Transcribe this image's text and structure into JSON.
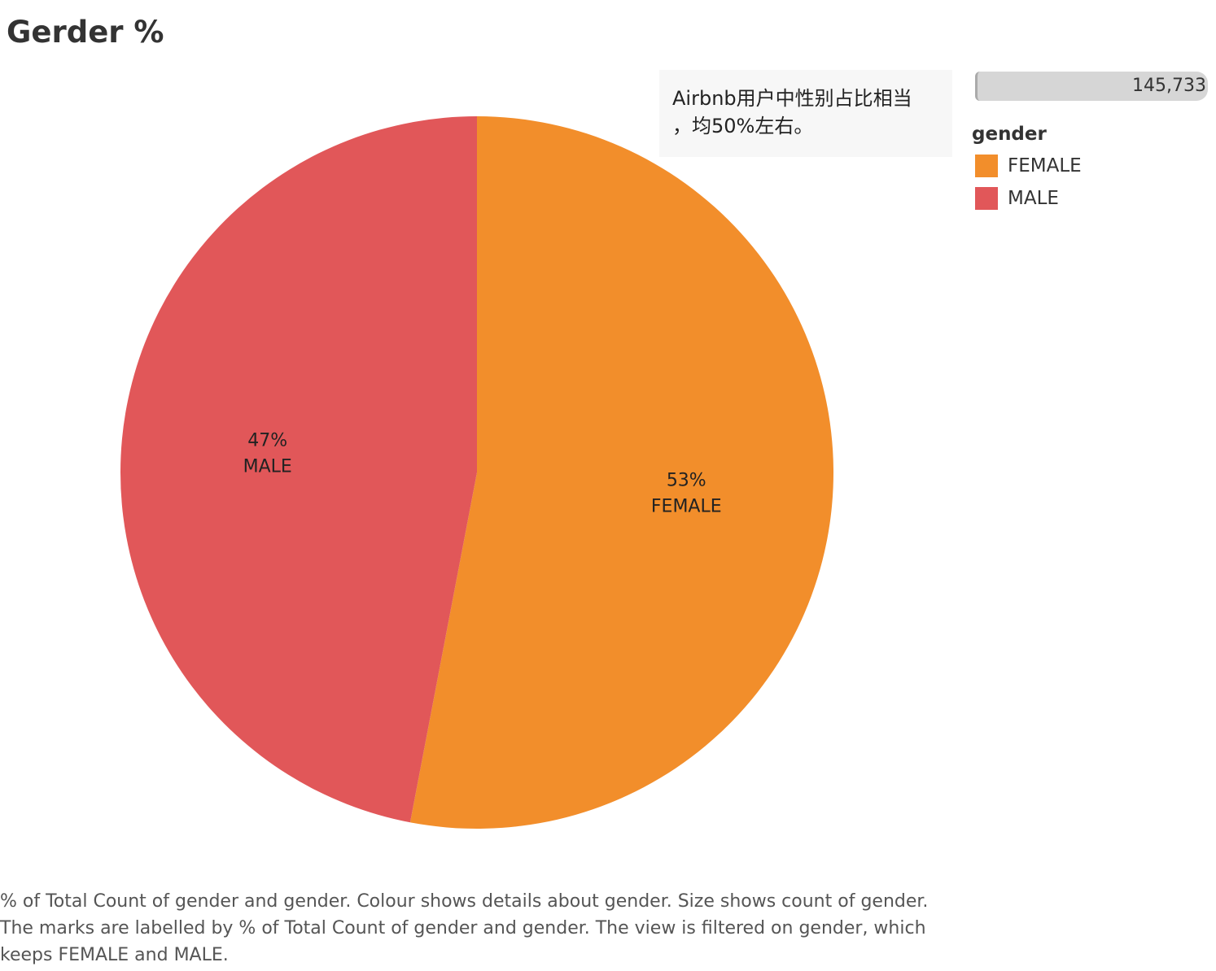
{
  "title": "Gerder %",
  "annotation": {
    "line1": "Airbnb用户中性别占比相当",
    "line2": "，均50%左右。"
  },
  "size_legend": {
    "max_value": "145,733"
  },
  "legend": {
    "title": "gender",
    "items": [
      {
        "label": "FEMALE",
        "color": "#f28e2b"
      },
      {
        "label": "MALE",
        "color": "#e15759"
      }
    ]
  },
  "chart_data": {
    "type": "pie",
    "categories": [
      "FEMALE",
      "MALE"
    ],
    "values": [
      53,
      47
    ],
    "value_labels": [
      "53%",
      "47%"
    ],
    "colors": [
      "#f28e2b",
      "#e15759"
    ],
    "title": "Gerder %",
    "legend": "right"
  },
  "caption": {
    "line1": "% of Total Count of gender and gender.  Colour shows details about gender.  Size shows count of gender.",
    "line2": "The marks are labelled by % of Total Count of gender and gender. The view is filtered on gender, which",
    "line3": "keeps FEMALE and MALE."
  }
}
